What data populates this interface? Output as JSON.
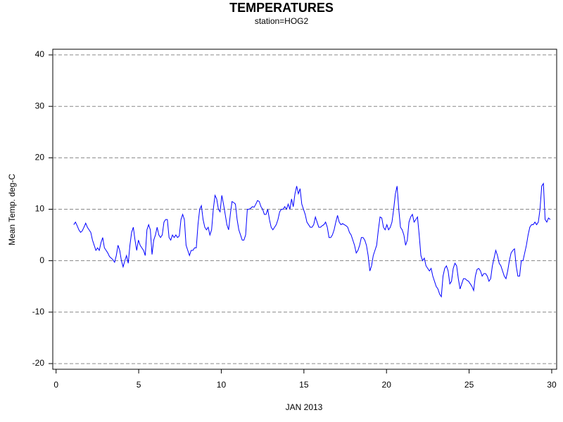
{
  "chart_data": {
    "type": "line",
    "title": "TEMPERATURES",
    "subtitle": "station=HOG2",
    "xlabel": "JAN 2013",
    "ylabel": "Mean Temp. deg-C",
    "xlim": [
      -0.2,
      30.3
    ],
    "xticks": [
      0,
      5,
      10,
      15,
      20,
      25,
      30
    ],
    "ylim": [
      -21.1,
      41.1
    ],
    "yticks": [
      -20,
      -10,
      0,
      10,
      20,
      30,
      40
    ],
    "grid": true,
    "x": [
      1.07,
      1.173,
      1.276,
      1.379,
      1.482,
      1.585,
      1.688,
      1.791,
      1.894,
      1.997,
      2.1,
      2.203,
      2.306,
      2.409,
      2.512,
      2.615,
      2.718,
      2.821,
      2.924,
      3.027,
      3.13,
      3.233,
      3.336,
      3.439,
      3.542,
      3.645,
      3.748,
      3.851,
      3.954,
      4.057,
      4.16,
      4.263,
      4.366,
      4.469,
      4.572,
      4.675,
      4.778,
      4.881,
      4.984,
      5.087,
      5.19,
      5.293,
      5.396,
      5.499,
      5.602,
      5.705,
      5.808,
      5.911,
      6.014,
      6.117,
      6.22,
      6.323,
      6.426,
      6.529,
      6.632,
      6.735,
      6.838,
      6.941,
      7.044,
      7.147,
      7.25,
      7.353,
      7.456,
      7.559,
      7.662,
      7.765,
      7.868,
      7.971,
      8.074,
      8.177,
      8.28,
      8.383,
      8.486,
      8.589,
      8.692,
      8.795,
      8.898,
      9.001,
      9.104,
      9.207,
      9.31,
      9.413,
      9.516,
      9.619,
      9.722,
      9.825,
      9.928,
      10.031,
      10.134,
      10.237,
      10.34,
      10.443,
      10.546,
      10.649,
      10.752,
      10.855,
      10.958,
      11.061,
      11.164,
      11.267,
      11.37,
      11.473,
      11.576,
      11.679,
      11.782,
      11.885,
      11.988,
      12.091,
      12.194,
      12.297,
      12.4,
      12.503,
      12.606,
      12.709,
      12.812,
      12.915,
      13.018,
      13.121,
      13.224,
      13.327,
      13.43,
      13.533,
      13.636,
      13.739,
      13.842,
      13.945,
      14.048,
      14.151,
      14.254,
      14.357,
      14.46,
      14.563,
      14.666,
      14.769,
      14.872,
      14.975,
      15.078,
      15.181,
      15.284,
      15.387,
      15.49,
      15.593,
      15.696,
      15.799,
      15.902,
      16.005,
      16.108,
      16.211,
      16.314,
      16.417,
      16.52,
      16.623,
      16.726,
      16.829,
      16.932,
      17.035,
      17.138,
      17.241,
      17.344,
      17.447,
      17.55,
      17.653,
      17.756,
      17.859,
      17.962,
      18.065,
      18.168,
      18.271,
      18.374,
      18.477,
      18.58,
      18.683,
      18.786,
      18.889,
      18.992,
      19.095,
      19.198,
      19.301,
      19.404,
      19.507,
      19.61,
      19.713,
      19.816,
      19.919,
      20.022,
      20.125,
      20.228,
      20.331,
      20.434,
      20.537,
      20.64,
      20.743,
      20.846,
      20.949,
      21.052,
      21.155,
      21.258,
      21.361,
      21.464,
      21.567,
      21.67,
      21.773,
      21.876,
      21.979,
      22.082,
      22.185,
      22.288,
      22.391,
      22.494,
      22.597,
      22.7,
      22.803,
      22.906,
      23.009,
      23.112,
      23.215,
      23.318,
      23.421,
      23.524,
      23.627,
      23.73,
      23.833,
      23.936,
      24.039,
      24.142,
      24.245,
      24.348,
      24.451,
      24.554,
      24.657,
      24.76,
      24.863,
      24.966,
      25.069,
      25.172,
      25.275,
      25.378,
      25.481,
      25.584,
      25.687,
      25.79,
      25.893,
      25.996,
      26.099,
      26.202,
      26.305,
      26.408,
      26.511,
      26.614,
      26.717,
      26.82,
      26.923,
      27.026,
      27.129,
      27.232,
      27.335,
      27.438,
      27.541,
      27.644,
      27.747,
      27.85,
      27.953,
      28.056,
      28.159,
      28.262,
      28.365,
      28.468,
      28.571,
      28.674,
      28.777,
      28.88,
      28.983,
      29.086,
      29.189,
      29.292,
      29.395,
      29.498,
      29.601,
      29.704,
      29.807,
      29.91
    ],
    "series": [
      {
        "color": "#0000ff",
        "values": [
          7.0,
          7.5,
          6.8,
          6,
          5.5,
          5.8,
          6.5,
          7.3,
          6.5,
          6,
          5.5,
          4,
          3,
          2,
          2.5,
          2,
          3.5,
          4.5,
          2.5,
          2,
          1.5,
          0.8,
          0.5,
          0.2,
          -0.3,
          1,
          3,
          2,
          0,
          -1.2,
          0,
          1,
          -0.5,
          3,
          5.5,
          6.5,
          4,
          2,
          4,
          3,
          2.5,
          2,
          1,
          6,
          7,
          6,
          1.2,
          4,
          5,
          6.5,
          5,
          4.5,
          5,
          7.5,
          8,
          8,
          4.5,
          4,
          5,
          4.5,
          5,
          4.5,
          4.8,
          8,
          9,
          8,
          3,
          2,
          1,
          2,
          2,
          2.5,
          2.5,
          7,
          10,
          10.7,
          8,
          6.5,
          6,
          6.5,
          5,
          6,
          10,
          12.7,
          12,
          10,
          9.5,
          12.7,
          11,
          9,
          7,
          6,
          9,
          11.5,
          11.3,
          11,
          8,
          6,
          5,
          4,
          4,
          5,
          10,
          10,
          10.2,
          10.5,
          10.4,
          11,
          11.7,
          11.5,
          10.5,
          10,
          9,
          9,
          10,
          8,
          6.5,
          6,
          6.5,
          7,
          8,
          9.5,
          10,
          10,
          10.5,
          10,
          11,
          10,
          12,
          10.5,
          13,
          14.5,
          13,
          14,
          11,
          10,
          9,
          7.5,
          7,
          6.5,
          6.5,
          7,
          8.5,
          7.5,
          6.5,
          6.5,
          6.8,
          7,
          7.5,
          6.5,
          4.5,
          4.5,
          5,
          6,
          7.5,
          8.8,
          7.5,
          7,
          7.2,
          7,
          6.8,
          6.5,
          5.5,
          5,
          4,
          3,
          1.5,
          2,
          3,
          4.5,
          4.5,
          4,
          3,
          1,
          -2,
          -1,
          1,
          2,
          3,
          6,
          8.5,
          8.3,
          6.5,
          6,
          7,
          6,
          6.5,
          7.5,
          10,
          13,
          14.5,
          10,
          6.5,
          6,
          5,
          3,
          4,
          7.5,
          8.5,
          9,
          7.5,
          8,
          8.5,
          5,
          1,
          0,
          0.5,
          -1,
          -1.5,
          -2,
          -1.5,
          -3,
          -4,
          -5,
          -5.5,
          -6.5,
          -7,
          -3,
          -1.5,
          -1,
          -2,
          -4.5,
          -4,
          -1.5,
          -0.5,
          -1,
          -3.5,
          -5.5,
          -4.5,
          -3.5,
          -3.5,
          -3.8,
          -4,
          -4.5,
          -5,
          -5.8,
          -3,
          -1.7,
          -1.5,
          -2,
          -3,
          -2.5,
          -2.5,
          -3,
          -4,
          -3.5,
          -1,
          0.5,
          2,
          1,
          -0.5,
          -1,
          -2,
          -3,
          -3.5,
          -2,
          0,
          1.5,
          2,
          2.3,
          -1,
          -3,
          -3,
          0,
          0,
          1.5,
          3,
          5,
          6.5,
          7,
          7,
          7.5,
          7,
          7.5,
          10,
          14.5,
          15,
          8,
          7.5,
          8.3,
          8
        ]
      }
    ]
  }
}
